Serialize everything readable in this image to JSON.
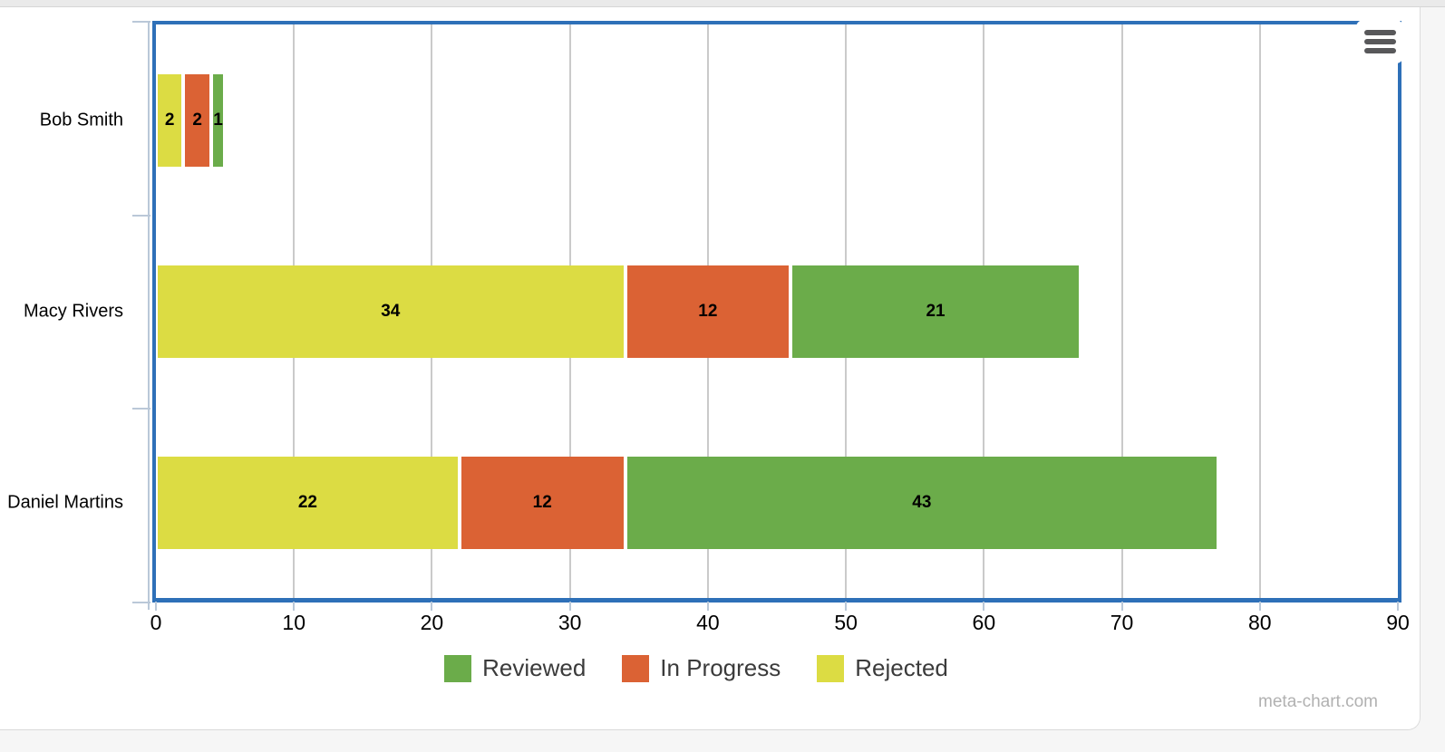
{
  "watermark": "meta-chart.com",
  "colors": {
    "frame_blue": "#2e70b8",
    "gridline": "#cacaca",
    "axis_light": "#bac8d8",
    "legend_text": "#3b3b3b",
    "watermark_text": "#b1b1b1",
    "value_label": "#000000"
  },
  "icons": {
    "menu": "hamburger-icon"
  },
  "chart_data": {
    "type": "bar",
    "orientation": "horizontal",
    "stacked": true,
    "title": "",
    "xlabel": "",
    "ylabel": "",
    "categories": [
      "Bob Smith",
      "Macy Rivers",
      "Daniel Martins"
    ],
    "series": [
      {
        "name": "Reviewed",
        "color": "#6bac4a",
        "values": [
          1,
          21,
          43
        ]
      },
      {
        "name": "In Progress",
        "color": "#db6234",
        "values": [
          2,
          12,
          12
        ]
      },
      {
        "name": "Rejected",
        "color": "#dcdc43",
        "values": [
          2,
          34,
          22
        ]
      }
    ],
    "stack_order": [
      "Rejected",
      "In Progress",
      "Reviewed"
    ],
    "xlim": [
      0,
      90
    ],
    "x_ticks": [
      0,
      10,
      20,
      30,
      40,
      50,
      60,
      70,
      80,
      90
    ],
    "grid": true,
    "legend_position": "bottom",
    "value_labels": true
  }
}
